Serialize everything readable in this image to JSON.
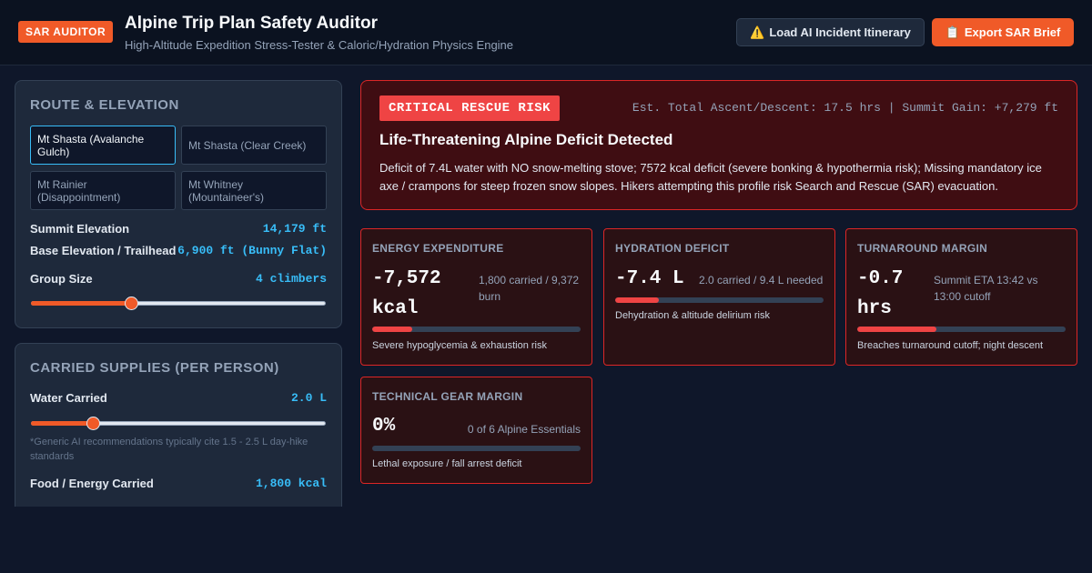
{
  "header": {
    "badge": "SAR AUDITOR",
    "title": "Alpine Trip Plan Safety Auditor",
    "subtitle": "High-Altitude Expedition Stress-Tester & Caloric/Hydration Physics Engine",
    "load_button": "Load AI Incident Itinerary",
    "load_icon": "⚠️",
    "export_button": "Export SAR Brief",
    "export_icon": "📋"
  },
  "route": {
    "title": "ROUTE & ELEVATION",
    "routes": [
      {
        "label": "Mt Shasta (Avalanche Gulch)",
        "active": true
      },
      {
        "label": "Mt Shasta (Clear Creek)",
        "active": false
      },
      {
        "label": "Mt Rainier (Disappointment)",
        "active": false
      },
      {
        "label": "Mt Whitney (Mountaineer's)",
        "active": false
      }
    ],
    "summit_label": "Summit Elevation",
    "summit_value": "14,179 ft",
    "base_label": "Base Elevation / Trailhead",
    "base_value": "6,900 ft (Bunny Flat)",
    "group_label": "Group Size",
    "group_value": "4 climbers",
    "group_slider_fraction": 0.34
  },
  "supplies": {
    "title": "CARRIED SUPPLIES (PER PERSON)",
    "water_label": "Water Carried",
    "water_value": "2.0 L",
    "water_slider_fraction": 0.21,
    "water_note": "*Generic AI recommendations typically cite 1.5 - 2.5 L day-hike standards",
    "food_label": "Food / Energy Carried",
    "food_value": "1,800 kcal"
  },
  "alert": {
    "tag": "CRITICAL RESCUE RISK",
    "meta": "Est. Total Ascent/Descent: 17.5 hrs | Summit Gain: +7,279 ft",
    "heading": "Life-Threatening Alpine Deficit Detected",
    "body": "Deficit of 7.4L water with NO snow-melting stove; 7572 kcal deficit (severe bonking & hypothermia risk); Missing mandatory ice axe / crampons for steep frozen snow slopes. Hikers attempting this profile risk Search and Rescue (SAR) evacuation."
  },
  "cards": {
    "energy": {
      "title": "ENERGY EXPENDITURE",
      "value": "-7,572 kcal",
      "detail": "1,800 carried / 9,372 burn",
      "fraction": 0.19,
      "note": "Severe hypoglycemia & exhaustion risk"
    },
    "hydration": {
      "title": "HYDRATION DEFICIT",
      "value": "-7.4 L",
      "detail": "2.0 carried / 9.4 L needed",
      "fraction": 0.21,
      "note": "Dehydration & altitude delirium risk"
    },
    "turnaround": {
      "title": "TURNAROUND MARGIN",
      "value": "-0.7 hrs",
      "detail": "Summit ETA 13:42 vs 13:00 cutoff",
      "fraction": 0.38,
      "note": "Breaches turnaround cutoff; night descent"
    },
    "gear": {
      "title": "TECHNICAL GEAR MARGIN",
      "value": "0%",
      "detail": "0 of 6 Alpine Essentials",
      "fraction": 0,
      "note": "Lethal exposure / fall arrest deficit"
    }
  }
}
